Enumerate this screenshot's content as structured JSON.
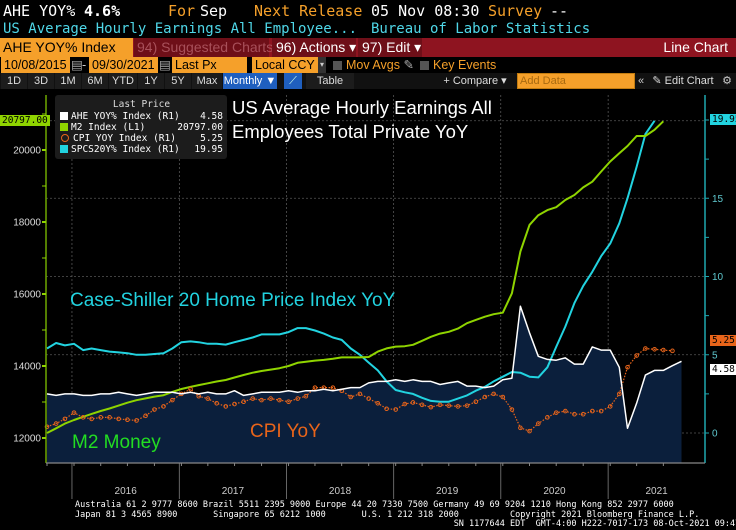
{
  "header": {
    "ticker": "AHE YOY%",
    "value": "4.6%",
    "for_label": "For",
    "for_value": "Sep",
    "next_release_label": "Next Release",
    "next_release_value": "05 Nov 08:30",
    "survey_label": "Survey",
    "survey_value": "--",
    "description": "US Average Hourly Earnings All Employee...",
    "source": "Bureau of Labor Statistics"
  },
  "toolbar": {
    "security": "AHE YOY% Index",
    "suggested": "94) Suggested Charts",
    "actions": "96) Actions ▾",
    "edit": "97) Edit ▾",
    "chart_type": "Line Chart",
    "start_date": "10/08/2015",
    "end_date": "09/30/2021",
    "date_sep": "-",
    "field": "Last Px",
    "currency": "Local CCY",
    "mov_avgs": "Mov Avgs",
    "key_events": "Key Events",
    "periods": [
      "1D",
      "3D",
      "1M",
      "6M",
      "YTD",
      "1Y",
      "5Y",
      "Max"
    ],
    "frequency": "Monthly ▼",
    "table": "Table",
    "compare": "+ Compare ▾",
    "add_data_placeholder": "Add Data",
    "collapse": "«",
    "edit_chart": "✎ Edit Chart",
    "settings": "⚙"
  },
  "legend": {
    "header": "Last Price",
    "items": [
      {
        "label": "AHE YOY% Index  (R1)",
        "value": "4.58"
      },
      {
        "label": "M2 Index  (L1)",
        "value": "20797.00"
      },
      {
        "label": "CPI YOY Index  (R1)",
        "value": "5.25"
      },
      {
        "label": "SPCS20Y% Index  (R1)",
        "value": "19.95"
      }
    ]
  },
  "colors": {
    "ahe": "#ffffff",
    "m2": "#8fd400",
    "cpi": "#e8641a",
    "spcs": "#22d3e0",
    "ahe_fill": "#0b1f3c"
  },
  "chart_data": {
    "type": "line",
    "title": "US Average Hourly Earnings All Employees Total Private YoY",
    "annotations": [
      "Case-Shiller 20 Home Price Index YoY",
      "M2 Money",
      "CPI YoY"
    ],
    "frequency": "monthly",
    "start_month": "2015-10",
    "x_range": [
      "2015-10-08",
      "2021-09-30"
    ],
    "x_tick_labels": [
      "2016",
      "2017",
      "2018",
      "2019",
      "2020",
      "2021"
    ],
    "left_axis": {
      "ticks": [
        12000,
        14000,
        16000,
        18000,
        20000
      ],
      "range": [
        11250,
        21170
      ],
      "last_label": "20797.00"
    },
    "right_axis": {
      "ticks": [
        0,
        5,
        10,
        15
      ],
      "range": [
        -2.05,
        20.8
      ],
      "last_labels": [
        "19.95",
        "5.25",
        "4.58"
      ]
    },
    "grid": true,
    "legend_position": "top-left",
    "series": [
      {
        "name": "AHE YOY% Index",
        "axis": "right",
        "style": "area-line",
        "values": [
          2.5,
          2.4,
          2.5,
          2.5,
          2.4,
          2.4,
          2.5,
          2.5,
          2.6,
          2.5,
          2.4,
          2.5,
          2.6,
          2.6,
          2.6,
          2.5,
          2.6,
          2.5,
          2.6,
          2.5,
          2.5,
          2.7,
          2.4,
          2.5,
          2.6,
          2.6,
          2.6,
          2.7,
          2.6,
          2.7,
          2.7,
          2.8,
          2.7,
          2.8,
          2.9,
          2.9,
          3.2,
          3.3,
          3.3,
          3.4,
          3.3,
          3.4,
          3.3,
          3.3,
          3.1,
          3.2,
          3.3,
          3.0,
          3.0,
          2.9,
          3.0,
          3.4,
          3.5,
          8.1,
          6.4,
          4.9,
          4.7,
          4.65,
          4.8,
          4.4,
          4.4,
          5.5,
          5.3,
          5.3,
          4.2,
          0.3,
          1.9,
          3.7,
          4.0,
          4.0,
          4.3,
          4.58
        ]
      },
      {
        "name": "M2 Index",
        "axis": "left",
        "style": "line",
        "values": [
          12140,
          12270,
          12400,
          12500,
          12590,
          12670,
          12750,
          12820,
          12900,
          12980,
          13050,
          13100,
          13150,
          13190,
          13280,
          13360,
          13420,
          13470,
          13520,
          13570,
          13610,
          13680,
          13750,
          13815,
          13860,
          13900,
          13940,
          14000,
          14090,
          14120,
          14150,
          14170,
          14200,
          14240,
          14240,
          14240,
          14250,
          14400,
          14490,
          14540,
          14550,
          14590,
          14700,
          14810,
          14900,
          14950,
          15040,
          15190,
          15280,
          15370,
          15440,
          15480,
          16020,
          17180,
          17920,
          18190,
          18330,
          18410,
          18610,
          18750,
          18960,
          19120,
          19400,
          19680,
          19910,
          20110,
          20390,
          20390,
          20560,
          20797
        ]
      },
      {
        "name": "CPI YOY Index",
        "axis": "right",
        "style": "dotted-markers",
        "values": [
          0.4,
          0.6,
          0.9,
          1.3,
          1.0,
          0.9,
          1.0,
          1.0,
          0.9,
          0.85,
          0.8,
          1.1,
          1.5,
          1.7,
          2.1,
          2.5,
          2.8,
          2.35,
          2.2,
          1.9,
          1.7,
          1.85,
          2.0,
          2.2,
          2.1,
          2.2,
          2.1,
          2.0,
          2.2,
          2.35,
          2.9,
          2.9,
          2.9,
          2.7,
          2.3,
          2.5,
          2.2,
          1.9,
          1.55,
          1.5,
          1.85,
          1.95,
          1.8,
          1.65,
          1.8,
          1.75,
          1.7,
          1.75,
          2.0,
          2.3,
          2.5,
          2.3,
          1.5,
          0.33,
          0.12,
          0.6,
          1.0,
          1.3,
          1.4,
          1.2,
          1.2,
          1.4,
          1.4,
          1.7,
          2.5,
          4.2,
          4.95,
          5.4,
          5.35,
          5.3,
          5.25
        ]
      },
      {
        "name": "SPCS20Y% Index",
        "axis": "right",
        "style": "line",
        "values": [
          5.4,
          5.75,
          5.6,
          5.7,
          5.3,
          5.4,
          5.3,
          5.2,
          5.15,
          5.1,
          5.0,
          5.0,
          5.05,
          5.1,
          5.4,
          5.8,
          5.85,
          5.8,
          5.7,
          5.7,
          5.65,
          5.8,
          5.95,
          6.1,
          6.3,
          6.3,
          6.3,
          6.45,
          6.7,
          6.7,
          6.55,
          6.35,
          6.1,
          5.95,
          5.4,
          5.0,
          4.5,
          4.0,
          3.3,
          2.75,
          2.6,
          2.5,
          2.25,
          2.05,
          2.0,
          2.0,
          2.2,
          2.4,
          2.7,
          2.95,
          3.3,
          3.6,
          3.9,
          3.85,
          3.6,
          3.55,
          4.2,
          5.5,
          6.8,
          8.3,
          9.4,
          10.3,
          11.3,
          12.1,
          13.4,
          15.0,
          17.0,
          19.1,
          19.95
        ]
      }
    ]
  },
  "footer": {
    "line1": "Australia 61 2 9777 8600 Brazil 5511 2395 9000 Europe 44 20 7330 7500 Germany 49 69 9204 1210 Hong Kong 852 2977 6000",
    "line2": "Japan 81 3 4565 8900       Singapore 65 6212 1000       U.S. 1 212 318 2000          Copyright 2021 Bloomberg Finance L.P.",
    "line3": "                                                                          SN 1177644 EDT  GMT-4:00 H222-7017-173 08-Oct-2021 09:47:26"
  }
}
